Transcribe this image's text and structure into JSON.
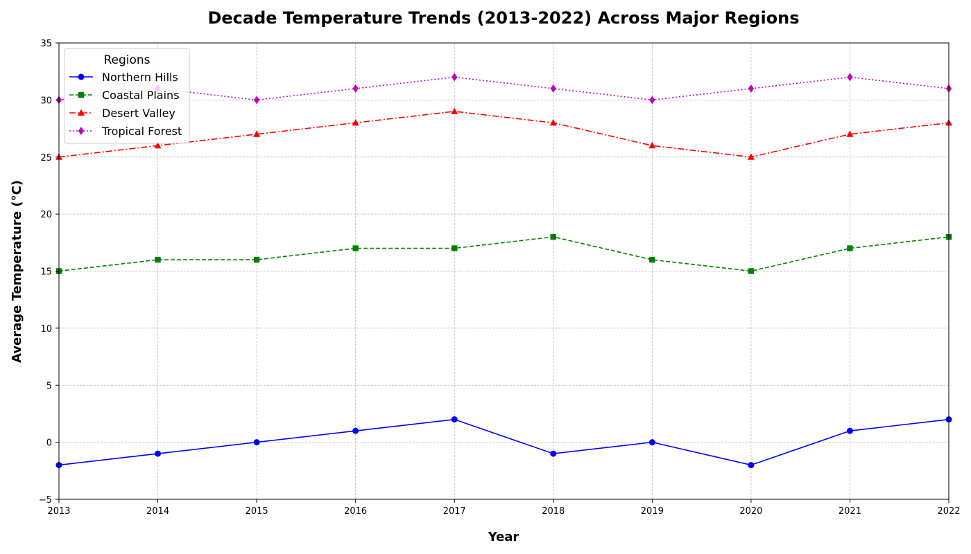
{
  "chart_data": {
    "type": "line",
    "title": "Decade Temperature Trends (2013-2022) Across Major Regions",
    "xlabel": "Year",
    "ylabel": "Average Temperature (°C)",
    "x": [
      2013,
      2014,
      2015,
      2016,
      2017,
      2018,
      2019,
      2020,
      2021,
      2022
    ],
    "x_tick_labels": [
      "2013",
      "2014",
      "2015",
      "2016",
      "2017",
      "2018",
      "2019",
      "2020",
      "2021",
      "2022"
    ],
    "xlim": [
      2013,
      2022
    ],
    "ylim": [
      -5,
      35
    ],
    "y_ticks": [
      -5,
      0,
      5,
      10,
      15,
      20,
      25,
      30,
      35
    ],
    "y_tick_labels": [
      "−5",
      "0",
      "5",
      "10",
      "15",
      "20",
      "25",
      "30",
      "35"
    ],
    "grid": true,
    "legend": {
      "title": "Regions",
      "placement": "top-left"
    },
    "series": [
      {
        "name": "Northern Hills",
        "values": [
          -2,
          -1,
          0,
          1,
          2,
          -1,
          0,
          -2,
          1,
          2
        ],
        "color": "#0000ff",
        "line_style": "solid",
        "marker": "circle"
      },
      {
        "name": "Coastal Plains",
        "values": [
          15,
          16,
          16,
          17,
          17,
          18,
          16,
          15,
          17,
          18
        ],
        "color": "#008000",
        "line_style": "dashed",
        "marker": "square"
      },
      {
        "name": "Desert Valley",
        "values": [
          25,
          26,
          27,
          28,
          29,
          28,
          26,
          25,
          27,
          28
        ],
        "color": "#ff0000",
        "line_style": "dashdot",
        "marker": "triangle"
      },
      {
        "name": "Tropical Forest",
        "values": [
          30,
          31,
          30,
          31,
          32,
          31,
          30,
          31,
          32,
          31
        ],
        "color": "#c000c0",
        "line_style": "dotted",
        "marker": "diamond"
      }
    ]
  }
}
